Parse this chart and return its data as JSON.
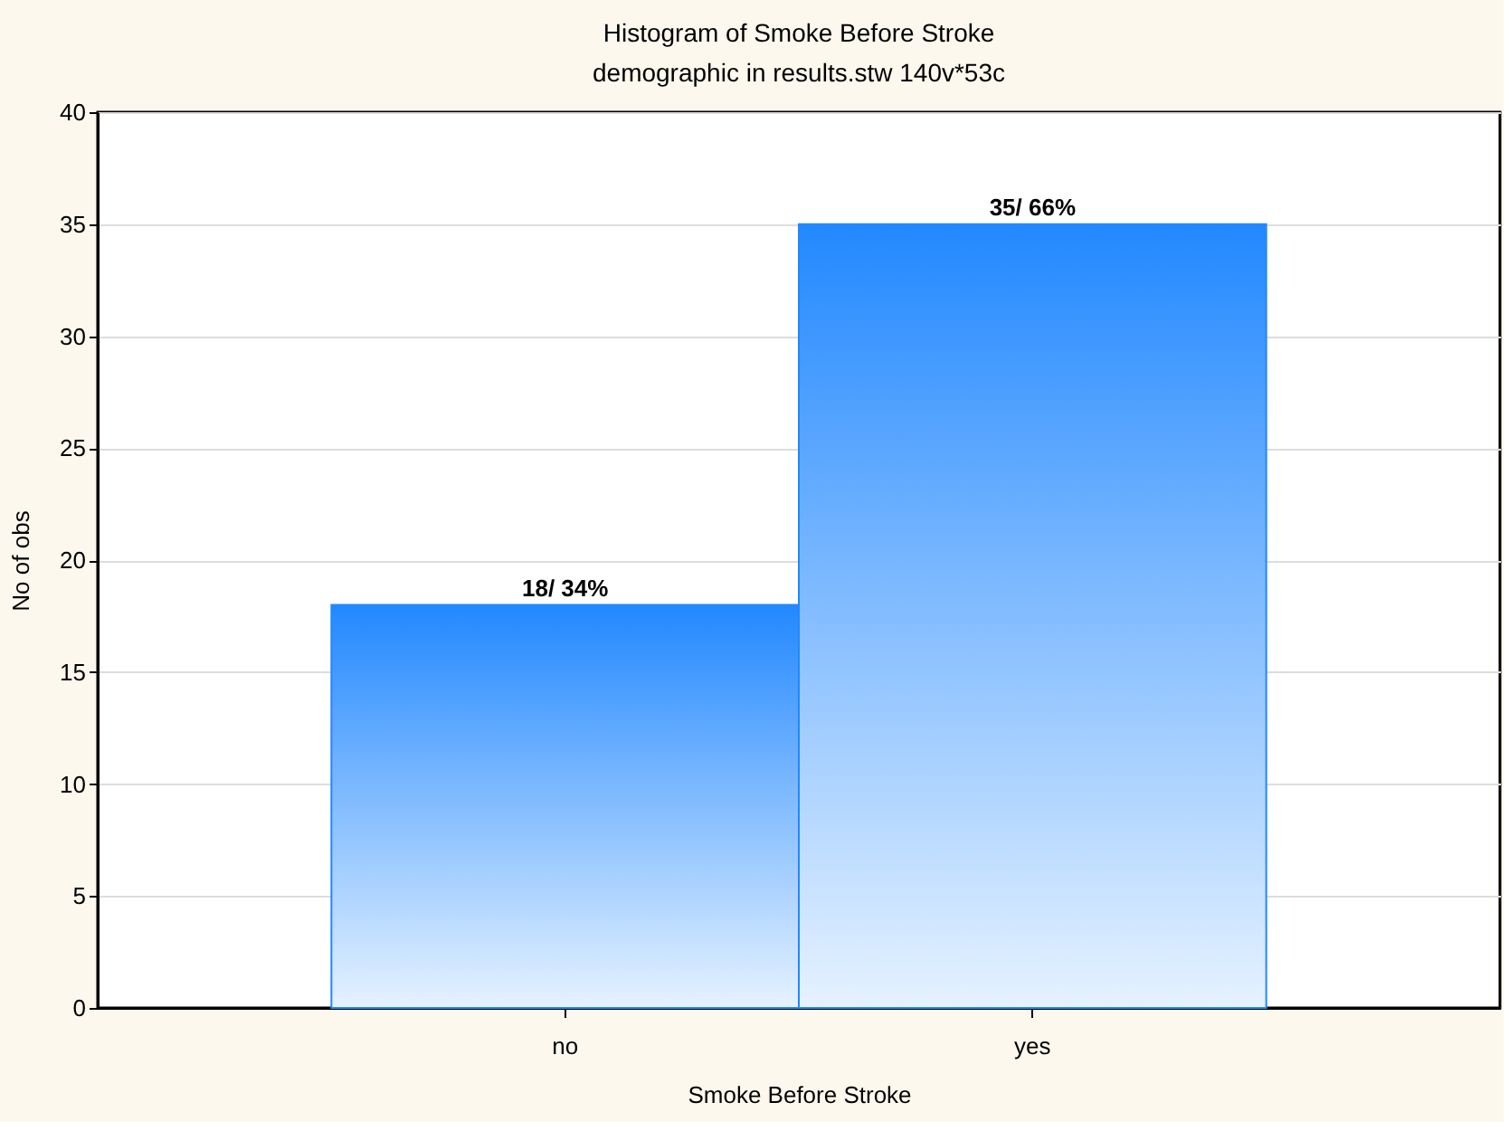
{
  "chart_data": {
    "type": "bar",
    "title": "Histogram of Smoke Before Stroke",
    "subtitle": "demographic in results.stw 140v*53c",
    "xlabel": "Smoke Before Stroke",
    "ylabel": "No of obs",
    "categories": [
      "no",
      "yes"
    ],
    "values": [
      18,
      35
    ],
    "color": "#2288ff",
    "value_labels": [
      "18/ 34%",
      "35/ 66%"
    ],
    "ylim": [
      0,
      40
    ],
    "yticks": [
      0,
      5,
      10,
      15,
      20,
      25,
      30,
      35,
      40
    ],
    "grid": "y"
  }
}
